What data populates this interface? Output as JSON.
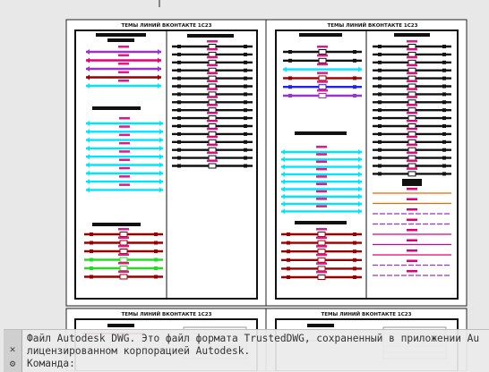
{
  "drawing": {
    "sheet_title": "ТЕМЫ ЛИНИЙ ВКОНТАКТЕ 1С23",
    "bottom_sheet_title": "ТЕМЫ ЛИНИЙ ВКОНТАКТЕ 1С23",
    "legend_colors": {
      "pink": "#e0007a",
      "purple": "#9933cc",
      "cyan": "#00e5ff",
      "darkred": "#990000",
      "green": "#22dd22",
      "blue": "#2222ee",
      "orange": "#ee6600",
      "black": "#111111"
    },
    "sheet_tl": {
      "title": "ТЕМЫ ЛИНИЙ ВКОНТАКТЕ 1С23",
      "left_groups": [
        {
          "lines": [
            "purple",
            "pink",
            "purple",
            "darkred",
            "cyan"
          ]
        },
        {
          "lines": [
            "cyan",
            "cyan",
            "cyan",
            "cyan",
            "cyan",
            "cyan",
            "cyan",
            "cyan",
            "cyan"
          ]
        },
        {
          "lines": [
            "darkred",
            "darkred",
            "darkred",
            "green",
            "green",
            "darkred"
          ]
        }
      ],
      "right_lines": [
        "black",
        "black",
        "black",
        "black",
        "black",
        "black",
        "black",
        "black",
        "black",
        "black",
        "black",
        "black",
        "black",
        "black",
        "black",
        "black"
      ]
    },
    "sheet_tr": {
      "title": "ТЕМЫ ЛИНИЙ ВКОНТАКТЕ 1С23",
      "left_groups": [
        {
          "lines": [
            "black",
            "black",
            "cyan",
            "darkred",
            "blue",
            "purple"
          ]
        },
        {
          "lines": [
            "cyan",
            "cyan",
            "cyan",
            "cyan",
            "cyan",
            "cyan",
            "cyan",
            "cyan",
            "cyan"
          ]
        },
        {
          "lines": [
            "darkred",
            "darkred",
            "darkred",
            "darkred",
            "darkred",
            "darkred"
          ]
        }
      ],
      "right_lines": [
        "black",
        "black",
        "black",
        "black",
        "black",
        "black",
        "black",
        "black",
        "black",
        "black",
        "black",
        "black",
        "black",
        "black",
        "black",
        "black",
        "black"
      ],
      "right_lower": [
        "orange",
        "orange",
        "purple",
        "purple",
        "pink",
        "pink",
        "pink",
        "purple",
        "purple"
      ]
    }
  },
  "command_line": {
    "line1": "Файл Autodesk DWG. Это файл формата TrustedDWG, сохраненный в приложении Au",
    "line2": "лицензированном корпорацией Autodesk.",
    "prompt": "Команда:",
    "close_icon": "close-icon",
    "settings_icon": "wrench-icon"
  }
}
